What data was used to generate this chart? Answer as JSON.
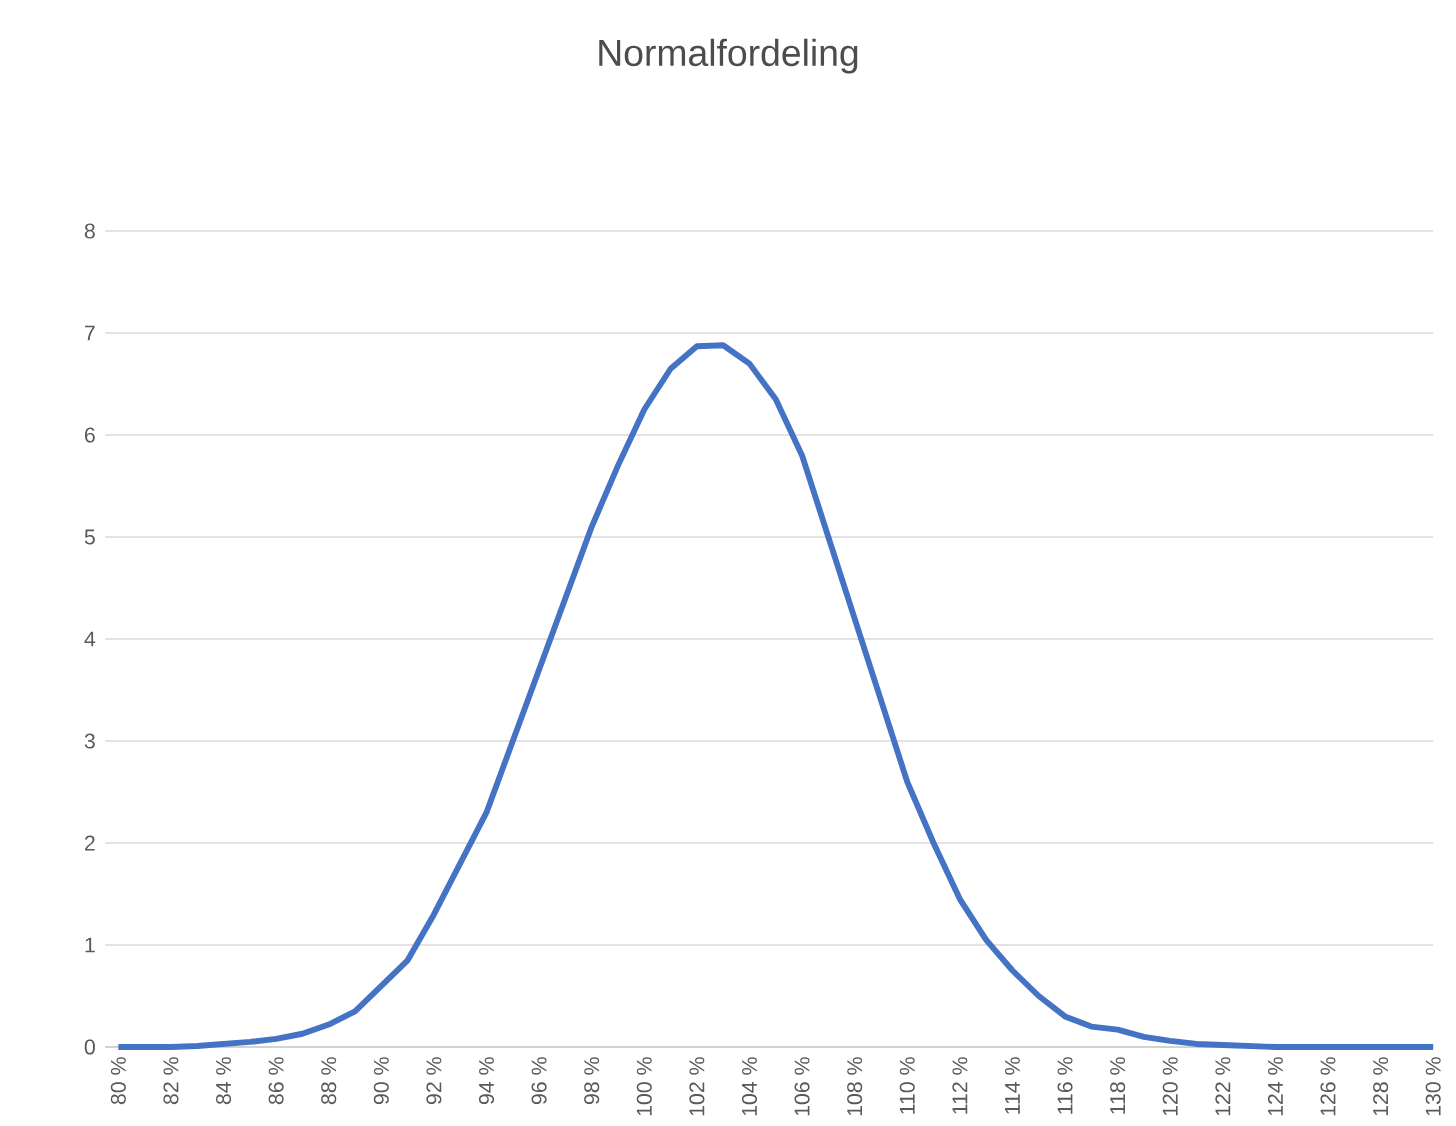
{
  "chart_data": {
    "type": "line",
    "title": "Normalfordeling",
    "categories": [
      "80 %",
      null,
      "82 %",
      null,
      "84 %",
      null,
      "86 %",
      null,
      "88 %",
      null,
      "90 %",
      null,
      "92 %",
      null,
      "94 %",
      null,
      "96 %",
      null,
      "98 %",
      null,
      "100 %",
      null,
      "102 %",
      null,
      "104 %",
      null,
      "106 %",
      null,
      "108 %",
      null,
      "110 %",
      null,
      "112 %",
      null,
      "114 %",
      null,
      "116 %",
      null,
      "118 %",
      null,
      "120 %",
      null,
      "122 %",
      null,
      "124 %",
      null,
      "126 %",
      null,
      "128 %",
      null,
      "130 %"
    ],
    "series": [
      {
        "color": "#4472c4",
        "values": [
          0,
          0,
          0,
          0.01,
          0.03,
          0.05,
          0.08,
          0.13,
          0.22,
          0.35,
          0.6,
          0.85,
          1.3,
          1.8,
          2.3,
          3.0,
          3.7,
          4.4,
          5.1,
          5.7,
          6.25,
          6.65,
          6.87,
          6.88,
          6.7,
          6.35,
          5.8,
          5.0,
          4.2,
          3.4,
          2.6,
          2.0,
          1.45,
          1.05,
          0.75,
          0.5,
          0.3,
          0.2,
          0.17,
          0.1,
          0.06,
          0.03,
          0.02,
          0.01,
          0,
          0,
          0,
          0,
          0,
          0,
          0
        ]
      }
    ],
    "ylim": [
      0,
      8
    ],
    "yticks": [
      0,
      1,
      2,
      3,
      4,
      5,
      6,
      7,
      8
    ],
    "grid": "y",
    "marker": "none",
    "line_style": "solid"
  }
}
